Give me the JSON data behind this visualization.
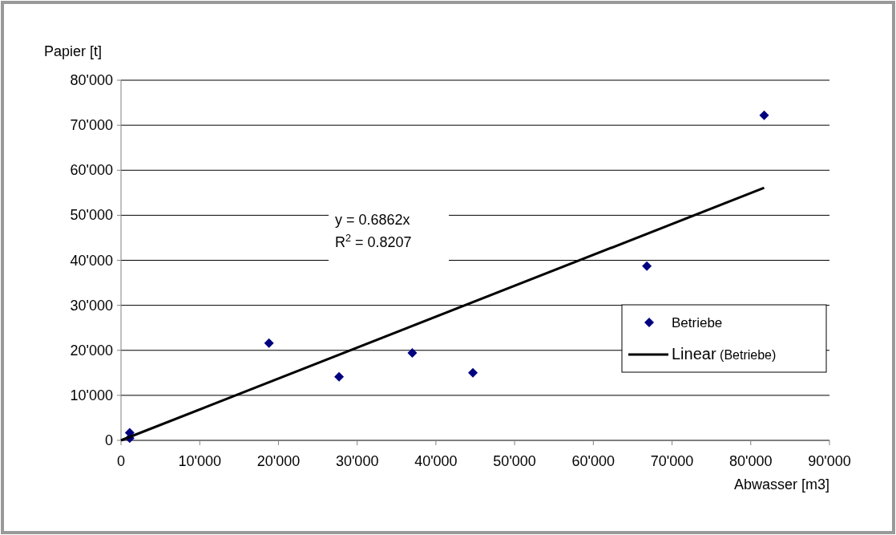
{
  "chart_data": {
    "type": "scatter",
    "xlabel": "Abwasser [m3]",
    "ylabel": "Papier [t]",
    "xlim": [
      0,
      90000
    ],
    "xticks": [
      {
        "value": 0,
        "label": "0"
      },
      {
        "value": 10000,
        "label": "10'000"
      },
      {
        "value": 20000,
        "label": "20'000"
      },
      {
        "value": 30000,
        "label": "30'000"
      },
      {
        "value": 40000,
        "label": "40'000"
      },
      {
        "value": 50000,
        "label": "50'000"
      },
      {
        "value": 60000,
        "label": "60'000"
      },
      {
        "value": 70000,
        "label": "70'000"
      },
      {
        "value": 80000,
        "label": "80'000"
      },
      {
        "value": 90000,
        "label": "90'000"
      }
    ],
    "ylim": [
      0,
      80000
    ],
    "yticks": [
      {
        "value": 0,
        "label": "0"
      },
      {
        "value": 10000,
        "label": "10'000"
      },
      {
        "value": 20000,
        "label": "20'000"
      },
      {
        "value": 30000,
        "label": "30'000"
      },
      {
        "value": 40000,
        "label": "40'000"
      },
      {
        "value": 50000,
        "label": "50'000"
      },
      {
        "value": 60000,
        "label": "60'000"
      },
      {
        "value": 70000,
        "label": "70'000"
      },
      {
        "value": 80000,
        "label": "80'000"
      }
    ],
    "grid": "y",
    "legend": "right",
    "series": [
      {
        "name": "Betriebe",
        "marker": "diamond",
        "color": "#000080",
        "x": [
          1100,
          1100,
          18800,
          27700,
          37000,
          44700,
          66800,
          81700
        ],
        "values": [
          1700,
          500,
          21600,
          14100,
          19400,
          15000,
          38700,
          72200
        ]
      },
      {
        "name": "Linear (Betriebe)",
        "type": "line",
        "color": "#000000",
        "x": [
          0,
          81700
        ],
        "values": [
          0,
          56100
        ]
      }
    ],
    "annotations": [
      "y = 0.6862x",
      "R$^{2}$ = 0.8207"
    ]
  }
}
